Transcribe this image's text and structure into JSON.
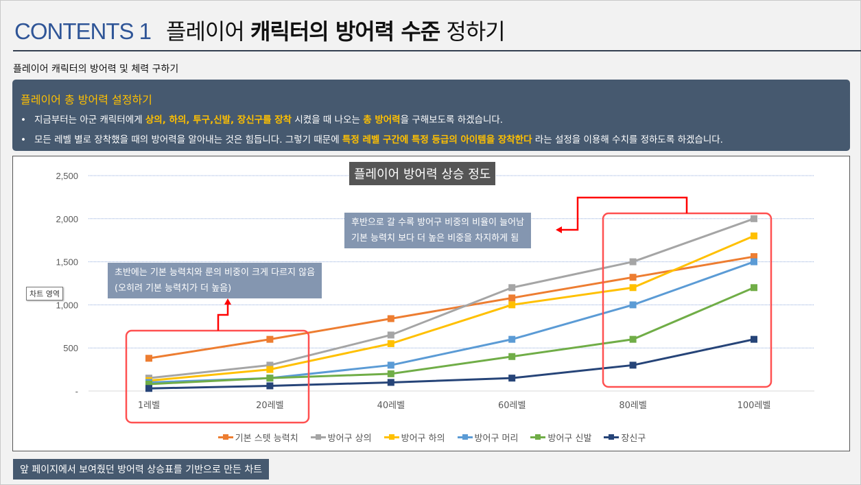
{
  "header": {
    "contents_label": "CONTENTS 1",
    "title_parts": [
      {
        "text": "플레이어 ",
        "bold": false
      },
      {
        "text": "캐릭터의 방어력 수준",
        "bold": true
      },
      {
        "text": " 정하기",
        "bold": false
      }
    ]
  },
  "subtitle": "플레이어 캐릭터의 방어력 및 체력 구하기",
  "panel": {
    "title": "플레이어 총 방어력 설정하기",
    "bullets": [
      [
        {
          "text": "지금부터는 아군 캐릭터에게 ",
          "hl": false
        },
        {
          "text": "상의, 하의, 투구,신발, 장신구를 장착",
          "hl": true
        },
        {
          "text": " 시켰을 때 나오는 ",
          "hl": false
        },
        {
          "text": "총 방어력",
          "hl": true
        },
        {
          "text": "을 구해보도록 하겠습니다.",
          "hl": false
        }
      ],
      [
        {
          "text": "모든 레벨 별로 장착했을 때의 방어력을 알아내는 것은 힘듭니다. 그렇기 때문에 ",
          "hl": false
        },
        {
          "text": "특정 레벨 구간에 특정 등급의 아이템을 장착한다",
          "hl": true
        },
        {
          "text": " 라는 설정을 이용해 수치를 정하도록 하겠습니다.",
          "hl": false
        }
      ]
    ]
  },
  "tooltip": "차트 영역",
  "notes": {
    "early": [
      "초반에는 기본 능력치와 룬의 비중이 크게 다르지 않음",
      "(오히려 기본 능력치가 더 높음)"
    ],
    "late": [
      "후반으로 갈 수록 방어구 비중의 비율이 늘어남",
      "기본 능력치 보다 더 높은 비중을 차지하게 됨"
    ]
  },
  "footer": "앞 페이지에서 보여줬던 방어력 상승표를 기반으로 만든 차트",
  "colors": {
    "accent": "#ffc000",
    "panel": "#46596f",
    "highlight_box": "#ff5050",
    "arrow": "#ff0000"
  },
  "chart_data": {
    "type": "line",
    "title": "플레이어 방어력 상승 정도",
    "categories": [
      "1레벨",
      "20레벨",
      "40레벨",
      "60레벨",
      "80레벨",
      "100레벨"
    ],
    "ylim": [
      0,
      2500
    ],
    "yticks": [
      {
        "v": 2500,
        "label": "2,500"
      },
      {
        "v": 2000,
        "label": "2,000"
      },
      {
        "v": 1500,
        "label": "1,500"
      },
      {
        "v": 1000,
        "label": "1,000"
      },
      {
        "v": 500,
        "label": "500"
      },
      {
        "v": 0,
        "label": "-"
      }
    ],
    "grid": true,
    "legend": "bottom",
    "series": [
      {
        "name": "기본 스텟 능력치",
        "color": "#ed7d31",
        "values": [
          380,
          600,
          840,
          1080,
          1320,
          1560
        ]
      },
      {
        "name": "방어구 상의",
        "color": "#a5a5a5",
        "values": [
          150,
          300,
          650,
          1200,
          1500,
          2000
        ]
      },
      {
        "name": "방어구 하의",
        "color": "#ffc000",
        "values": [
          120,
          250,
          550,
          1000,
          1200,
          1800
        ]
      },
      {
        "name": "방어구 머리",
        "color": "#5b9bd5",
        "values": [
          100,
          150,
          300,
          600,
          1000,
          1500
        ]
      },
      {
        "name": "방어구 신발",
        "color": "#70ad47",
        "values": [
          80,
          150,
          200,
          400,
          600,
          1200
        ]
      },
      {
        "name": "장신구",
        "color": "#264478",
        "values": [
          30,
          60,
          100,
          150,
          300,
          600
        ]
      }
    ]
  }
}
